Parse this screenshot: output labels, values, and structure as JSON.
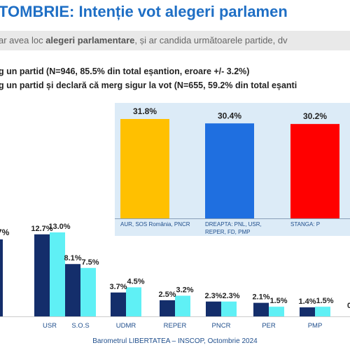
{
  "header": {
    "title": "TOMBRIE: Intenție vot alegeri parlamen",
    "subtitle_pre": "ar avea loc ",
    "subtitle_bold": "alegeri parlamentare",
    "subtitle_post": ", și ar candida următoarele partide, dv",
    "note1": "g un partid (N=946, 85.5% din total eșantion, eroare +/- 3.2%)",
    "note2": "g un partid și declară că merg sigur la vot (N=655, 59.2% din total eșanti"
  },
  "chart_data": [
    {
      "type": "bar",
      "categories": [
        "AUR, SOS România, PNCR",
        "DREAPTA: PNL, USR, REPER, FD, PMP",
        "STANGA: P"
      ],
      "values": [
        31.8,
        30.4,
        30.2
      ],
      "value_labels": [
        "31.8%",
        "30.4%",
        "30.2%"
      ],
      "colors": [
        "#ffc000",
        "#1f6fe0",
        "#ff0000"
      ]
    },
    {
      "type": "bar",
      "categories": [
        "",
        "USR",
        "S.O.S",
        "UDMR",
        "REPER",
        "PNCR",
        "PER",
        "PMP"
      ],
      "series": [
        {
          "values": [
            null,
            12.7,
            8.1,
            3.7,
            2.5,
            2.3,
            2.1,
            1.4
          ],
          "color": "#142e6b"
        },
        {
          "values": [
            null,
            13.0,
            7.5,
            4.5,
            3.2,
            2.3,
            1.5,
            1.5
          ],
          "color": "#5ff0f5"
        }
      ],
      "value_labels": [
        [
          "7%",
          "12.7%",
          "8.1%",
          "3.7%",
          "2.5%",
          "2.3%",
          "2.1%",
          "1.4%"
        ],
        [
          "",
          "13.0%",
          "7.5%",
          "4.5%",
          "3.2%",
          "2.3%",
          "1.5%",
          "1.5%"
        ]
      ],
      "trailing_label": "0"
    }
  ],
  "footer": "Barometrul LIBERTATEA – INSCOP, Octombrie 2024"
}
